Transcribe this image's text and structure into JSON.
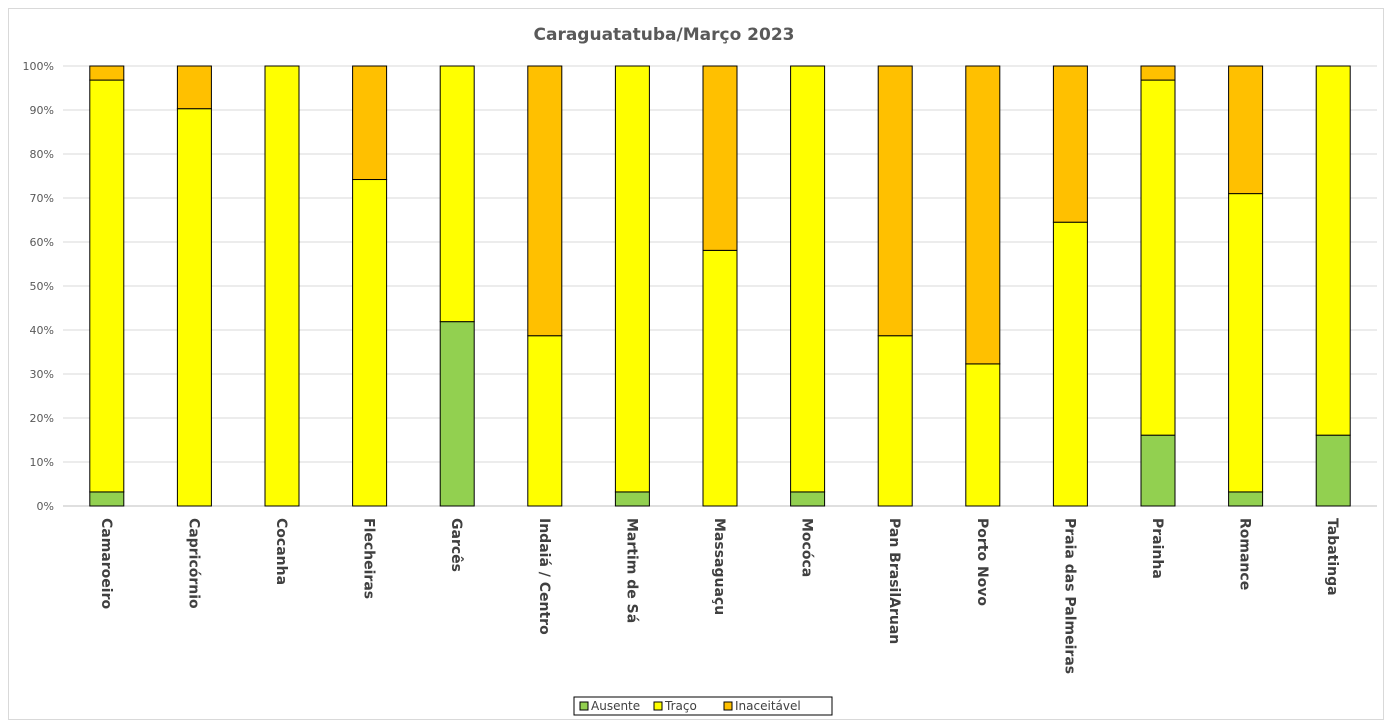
{
  "chart_data": {
    "type": "bar",
    "stacked": true,
    "percent": true,
    "title": "Caraguatatuba/Março 2023",
    "xlabel": "",
    "ylabel": "",
    "ylim": [
      0,
      100
    ],
    "yticks": [
      "0%",
      "10%",
      "20%",
      "30%",
      "40%",
      "50%",
      "60%",
      "70%",
      "80%",
      "90%",
      "100%"
    ],
    "grid": true,
    "legend_position": "bottom",
    "categories": [
      "Camaroeiro",
      "Capricórnio",
      "Cocanha",
      "Flecheiras",
      "Garcês",
      "Indaiá / Centro",
      "Martim de Sá",
      "Massaguaçu",
      "Mocóca",
      "Pan BrasilAruan",
      "Porto Novo",
      "Praia das Palmeiras",
      "Prainha",
      "Romance",
      "Tabatinga"
    ],
    "series": [
      {
        "name": "Ausente",
        "color": "#92d050",
        "values": [
          3.2,
          0,
          0,
          0,
          41.9,
          0,
          3.2,
          0,
          3.2,
          0,
          0,
          0,
          16.1,
          3.2,
          16.1
        ]
      },
      {
        "name": "Traço",
        "color": "#ffff00",
        "values": [
          93.6,
          90.3,
          100,
          74.2,
          58.1,
          38.7,
          96.8,
          58.1,
          96.8,
          38.7,
          32.3,
          64.5,
          80.7,
          67.8,
          83.9
        ]
      },
      {
        "name": "Inaceitável",
        "color": "#ffc000",
        "values": [
          3.2,
          9.7,
          0,
          25.8,
          0,
          61.3,
          0,
          41.9,
          0,
          61.3,
          67.7,
          35.5,
          3.2,
          29.0,
          0
        ]
      }
    ]
  }
}
